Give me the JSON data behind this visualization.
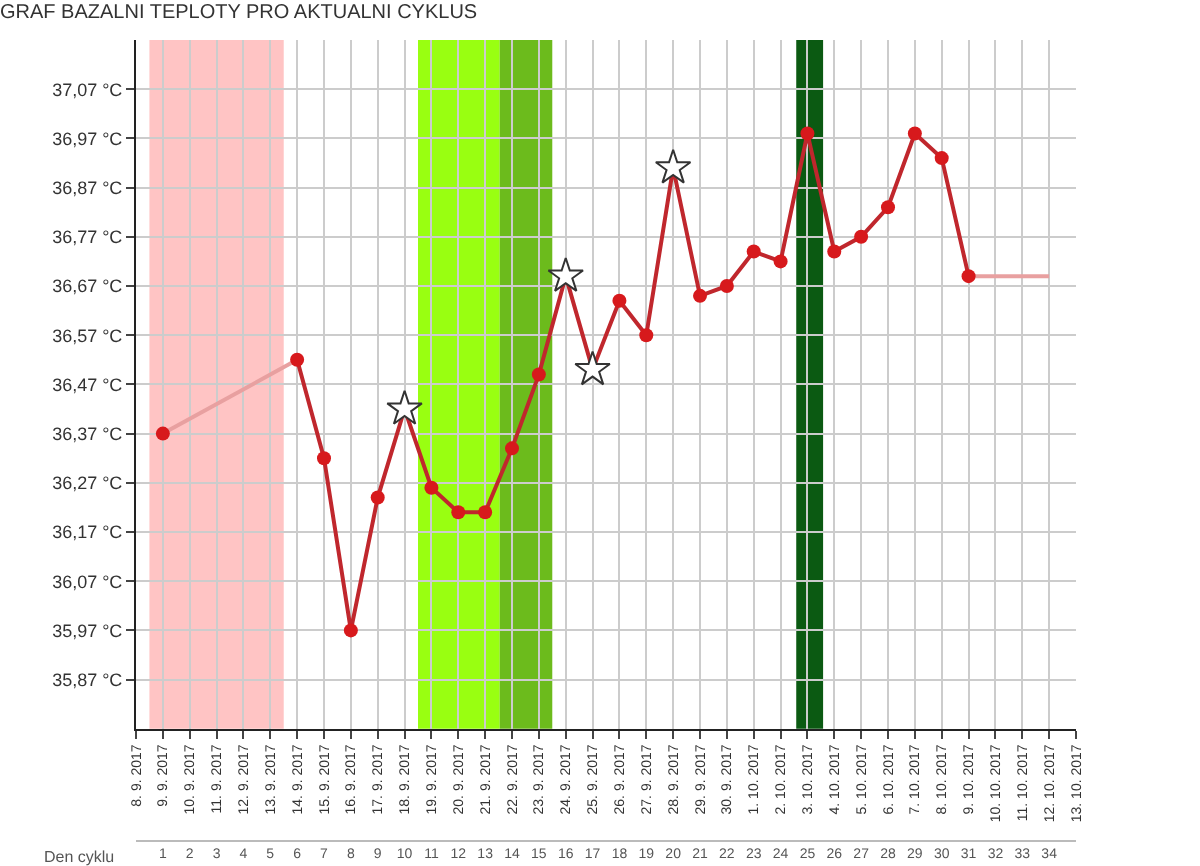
{
  "chart_data": {
    "type": "line",
    "title": "GRAF BAZALNI TEPLOTY PRO AKTUALNI CYKLUS",
    "series": [
      {
        "color": "#e8a0a0",
        "marker": "none",
        "x": [
          "2017-09-09",
          "2017-09-14"
        ],
        "values": [
          36.37,
          36.52
        ]
      },
      {
        "color": "#e8a0a0",
        "marker": "none",
        "x": [
          "2017-10-09",
          "2017-10-12"
        ],
        "values": [
          36.69,
          36.69
        ]
      },
      {
        "color": "#c0272d",
        "marker": "none",
        "x": [
          "2017-09-14",
          "2017-09-15",
          "2017-09-16",
          "2017-09-17",
          "2017-09-18",
          "2017-09-19",
          "2017-09-20",
          "2017-09-21",
          "2017-09-22",
          "2017-09-23",
          "2017-09-24",
          "2017-09-25",
          "2017-09-26",
          "2017-09-27",
          "2017-09-28",
          "2017-09-29",
          "2017-09-30",
          "2017-10-01",
          "2017-10-02",
          "2017-10-03",
          "2017-10-04",
          "2017-10-05",
          "2017-10-06",
          "2017-10-07",
          "2017-10-08",
          "2017-10-09"
        ],
        "values": [
          36.52,
          36.32,
          35.97,
          36.24,
          36.42,
          36.26,
          36.21,
          36.21,
          36.34,
          36.49,
          36.69,
          36.5,
          36.64,
          36.57,
          36.91,
          36.65,
          36.67,
          36.74,
          36.72,
          36.98,
          36.74,
          36.77,
          36.83,
          36.98,
          36.93,
          36.69
        ]
      },
      {
        "type": "scatter",
        "color": "#d7191c",
        "marker": "circle",
        "x": [
          "2017-09-09",
          "2017-09-14",
          "2017-09-15",
          "2017-09-16",
          "2017-09-17",
          "2017-09-19",
          "2017-09-20",
          "2017-09-21",
          "2017-09-22",
          "2017-09-23",
          "2017-09-26",
          "2017-09-27",
          "2017-09-29",
          "2017-09-30",
          "2017-10-01",
          "2017-10-02",
          "2017-10-03",
          "2017-10-04",
          "2017-10-05",
          "2017-10-06",
          "2017-10-07",
          "2017-10-08",
          "2017-10-09"
        ],
        "values": [
          36.37,
          36.52,
          36.32,
          35.97,
          36.24,
          36.26,
          36.21,
          36.21,
          36.34,
          36.49,
          36.64,
          36.57,
          36.65,
          36.67,
          36.74,
          36.72,
          36.98,
          36.74,
          36.77,
          36.83,
          36.98,
          36.93,
          36.69
        ]
      },
      {
        "type": "scatter",
        "color": "#333333",
        "marker": "star",
        "x": [
          "2017-09-18",
          "2017-09-24",
          "2017-09-25",
          "2017-09-28"
        ],
        "values": [
          36.42,
          36.69,
          36.5,
          36.91
        ]
      }
    ],
    "xlim": [
      "2017-09-08",
      "2017-10-13"
    ],
    "xticks": [
      {
        "value": "2017-09-08",
        "label": "8. 9. 2017"
      },
      {
        "value": "2017-09-09",
        "label": "9. 9. 2017"
      },
      {
        "value": "2017-09-10",
        "label": "10. 9. 2017"
      },
      {
        "value": "2017-09-11",
        "label": "11. 9. 2017"
      },
      {
        "value": "2017-09-12",
        "label": "12. 9. 2017"
      },
      {
        "value": "2017-09-13",
        "label": "13. 9. 2017"
      },
      {
        "value": "2017-09-14",
        "label": "14. 9. 2017"
      },
      {
        "value": "2017-09-15",
        "label": "15. 9. 2017"
      },
      {
        "value": "2017-09-16",
        "label": "16. 9. 2017"
      },
      {
        "value": "2017-09-17",
        "label": "17. 9. 2017"
      },
      {
        "value": "2017-09-18",
        "label": "18. 9. 2017"
      },
      {
        "value": "2017-09-19",
        "label": "19. 9. 2017"
      },
      {
        "value": "2017-09-20",
        "label": "20. 9. 2017"
      },
      {
        "value": "2017-09-21",
        "label": "21. 9. 2017"
      },
      {
        "value": "2017-09-22",
        "label": "22. 9. 2017"
      },
      {
        "value": "2017-09-23",
        "label": "23. 9. 2017"
      },
      {
        "value": "2017-09-24",
        "label": "24. 9. 2017"
      },
      {
        "value": "2017-09-25",
        "label": "25. 9. 2017"
      },
      {
        "value": "2017-09-26",
        "label": "26. 9. 2017"
      },
      {
        "value": "2017-09-27",
        "label": "27. 9. 2017"
      },
      {
        "value": "2017-09-28",
        "label": "28. 9. 2017"
      },
      {
        "value": "2017-09-29",
        "label": "29. 9. 2017"
      },
      {
        "value": "2017-09-30",
        "label": "30. 9. 2017"
      },
      {
        "value": "2017-10-01",
        "label": "1. 10. 2017"
      },
      {
        "value": "2017-10-02",
        "label": "2. 10. 2017"
      },
      {
        "value": "2017-10-03",
        "label": "3. 10. 2017"
      },
      {
        "value": "2017-10-04",
        "label": "4. 10. 2017"
      },
      {
        "value": "2017-10-05",
        "label": "5. 10. 2017"
      },
      {
        "value": "2017-10-06",
        "label": "6. 10. 2017"
      },
      {
        "value": "2017-10-07",
        "label": "7. 10. 2017"
      },
      {
        "value": "2017-10-08",
        "label": "8. 10. 2017"
      },
      {
        "value": "2017-10-09",
        "label": "9. 10. 2017"
      },
      {
        "value": "2017-10-10",
        "label": "10. 10. 2017"
      },
      {
        "value": "2017-10-11",
        "label": "11. 10. 2017"
      },
      {
        "value": "2017-10-12",
        "label": "12. 10. 2017"
      },
      {
        "value": "2017-10-13",
        "label": "13. 10. 2017"
      }
    ],
    "ylim": [
      35.77,
      37.17
    ],
    "yticks": [
      {
        "value": 35.87,
        "label": "35,87 °C"
      },
      {
        "value": 35.97,
        "label": "35,97 °C"
      },
      {
        "value": 36.07,
        "label": "36,07 °C"
      },
      {
        "value": 36.17,
        "label": "36,17 °C"
      },
      {
        "value": 36.27,
        "label": "36,27 °C"
      },
      {
        "value": 36.37,
        "label": "36,37 °C"
      },
      {
        "value": 36.47,
        "label": "36,47 °C"
      },
      {
        "value": 36.57,
        "label": "36,57 °C"
      },
      {
        "value": 36.67,
        "label": "36,67 °C"
      },
      {
        "value": 36.77,
        "label": "36,77 °C"
      },
      {
        "value": 36.87,
        "label": "36,87 °C"
      },
      {
        "value": 36.97,
        "label": "36,97 °C"
      },
      {
        "value": 37.07,
        "label": "37,07 °C"
      }
    ],
    "x2label": "Den cyklu",
    "x2lim": [
      0,
      35
    ],
    "x2ticks": [
      1,
      2,
      3,
      4,
      5,
      6,
      7,
      8,
      9,
      10,
      11,
      12,
      13,
      14,
      15,
      16,
      17,
      18,
      19,
      20,
      21,
      22,
      23,
      24,
      25,
      26,
      27,
      28,
      29,
      30,
      31,
      32,
      33,
      34
    ],
    "bands": [
      {
        "axis": "x",
        "from": "2017-09-08T12:00",
        "to": "2017-09-13T12:00",
        "color": "#ffc4c4"
      },
      {
        "axis": "x",
        "from": "2017-09-18T12:00",
        "to": "2017-09-21T13:00",
        "color": "#99ff11"
      },
      {
        "axis": "x",
        "from": "2017-09-21T13:00",
        "to": "2017-09-23T12:00",
        "color": "#6cbb1c"
      },
      {
        "axis": "x",
        "from": "2017-10-02T14:00",
        "to": "2017-10-03T14:00",
        "color": "#0b5a12"
      }
    ],
    "grid": true
  }
}
